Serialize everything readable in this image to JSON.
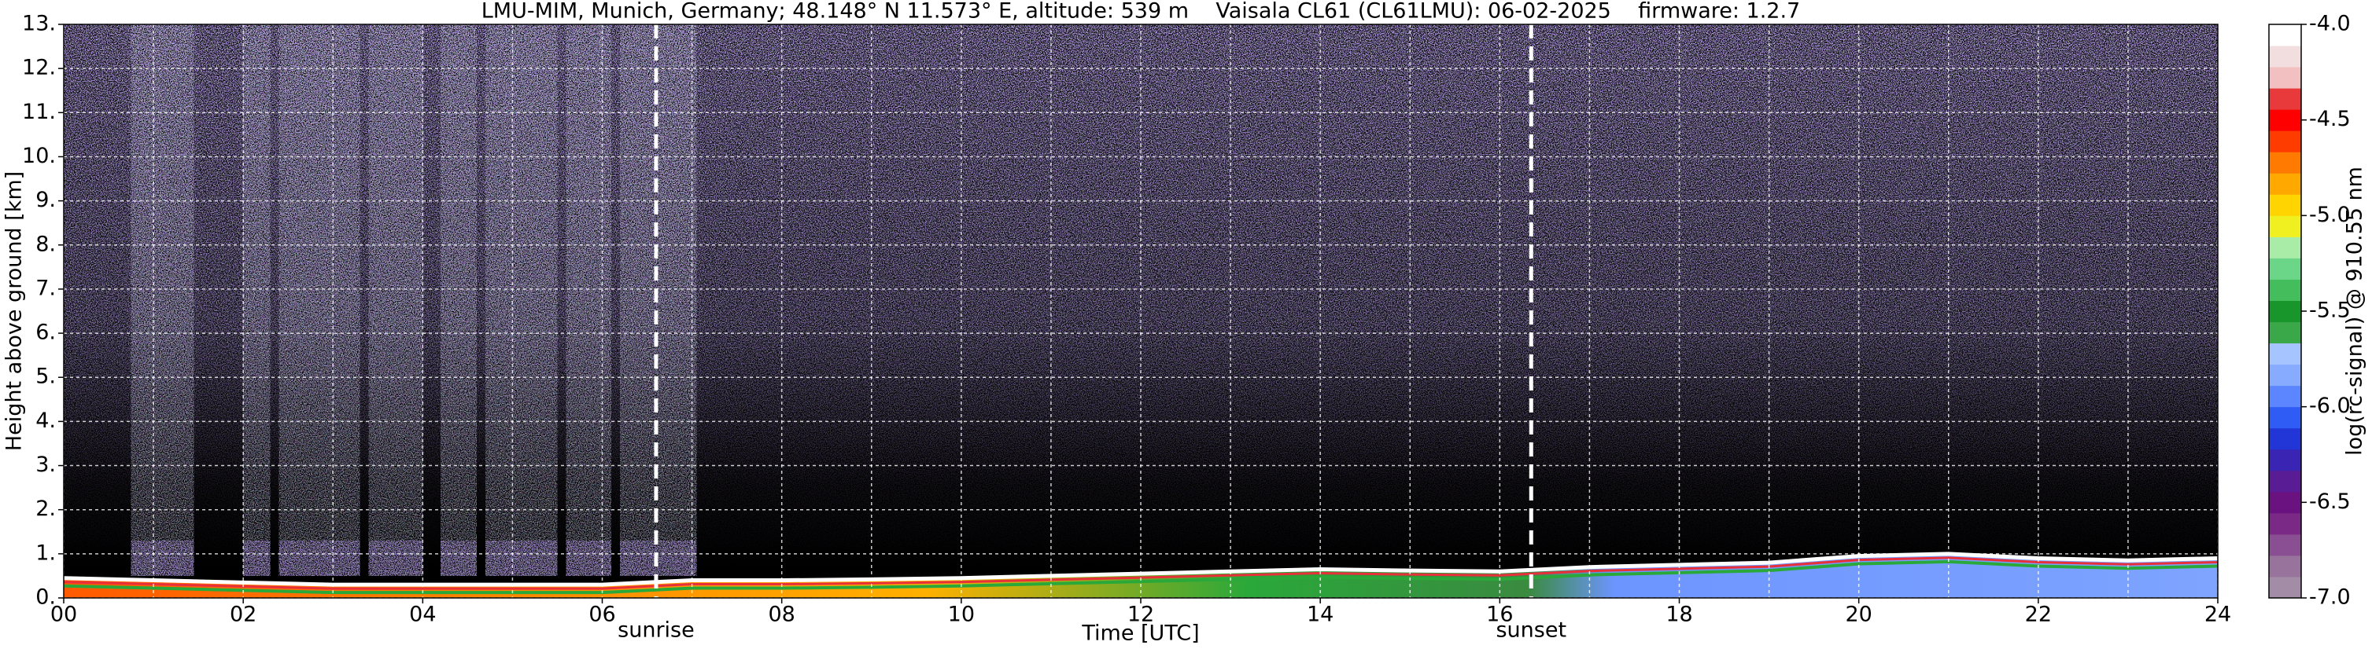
{
  "chart_data": {
    "type": "heatmap",
    "title": "LMU-MIM, Munich, Germany; 48.148° N 11.573° E, altitude: 539 m    Vaisala CL61 (CL61LMU): 06-02-2025    firmware: 1.2.7",
    "xlabel": "Time [UTC]",
    "ylabel": "Height above ground [km]",
    "xlim": [
      0,
      24
    ],
    "xticks": [
      {
        "value": 0,
        "label": "00"
      },
      {
        "value": 2,
        "label": "02"
      },
      {
        "value": 4,
        "label": "04"
      },
      {
        "value": 6,
        "label": "06"
      },
      {
        "value": 8,
        "label": "08"
      },
      {
        "value": 10,
        "label": "10"
      },
      {
        "value": 12,
        "label": "12"
      },
      {
        "value": 14,
        "label": "14"
      },
      {
        "value": 16,
        "label": "16"
      },
      {
        "value": 18,
        "label": "18"
      },
      {
        "value": 20,
        "label": "20"
      },
      {
        "value": 22,
        "label": "22"
      },
      {
        "value": 24,
        "label": "24"
      }
    ],
    "xminorticks": [
      1,
      3,
      5,
      7,
      9,
      11,
      13,
      15,
      17,
      19,
      21,
      23
    ],
    "ylim": [
      0,
      13
    ],
    "yticks": [
      {
        "value": 0,
        "label": "0."
      },
      {
        "value": 1,
        "label": "1."
      },
      {
        "value": 2,
        "label": "2."
      },
      {
        "value": 3,
        "label": "3."
      },
      {
        "value": 4,
        "label": "4."
      },
      {
        "value": 5,
        "label": "5."
      },
      {
        "value": 6,
        "label": "6."
      },
      {
        "value": 7,
        "label": "7."
      },
      {
        "value": 8,
        "label": "8."
      },
      {
        "value": 9,
        "label": "9."
      },
      {
        "value": 10,
        "label": "10."
      },
      {
        "value": 11,
        "label": "11."
      },
      {
        "value": 12,
        "label": "12."
      },
      {
        "value": 13,
        "label": "13."
      }
    ],
    "grid": true,
    "annotations": [
      {
        "text": "sunrise",
        "x": 6.6
      },
      {
        "text": "sunset",
        "x": 16.35
      }
    ],
    "layer_top": {
      "x": [
        0,
        1,
        2,
        3,
        4,
        5,
        6,
        7,
        8,
        9,
        10,
        11,
        12,
        13,
        14,
        15,
        16,
        17,
        18,
        19,
        20,
        21,
        22,
        23,
        24
      ],
      "values": [
        0.45,
        0.4,
        0.35,
        0.3,
        0.3,
        0.3,
        0.3,
        0.4,
        0.4,
        0.42,
        0.45,
        0.5,
        0.55,
        0.6,
        0.65,
        0.62,
        0.6,
        0.7,
        0.75,
        0.8,
        0.95,
        1.0,
        0.9,
        0.85,
        0.9
      ]
    },
    "colorbar": {
      "label": "log(rc-signal) @ 910.55 nm",
      "lim": [
        -7,
        -4
      ],
      "ticks": [
        {
          "value": -7,
          "label": "-7.0"
        },
        {
          "value": -6.5,
          "label": "-6.5"
        },
        {
          "value": -6,
          "label": "-6.0"
        },
        {
          "value": -5.5,
          "label": "-5.5"
        },
        {
          "value": -5,
          "label": "-5.0"
        },
        {
          "value": -4.5,
          "label": "-4.5"
        },
        {
          "value": -4,
          "label": "-4.0"
        }
      ],
      "colors": [
        "#a38ca6",
        "#98739c",
        "#8a4f92",
        "#7a2a86",
        "#6a1280",
        "#5a1c94",
        "#3a24b4",
        "#2236d8",
        "#2f5cf5",
        "#5b86ff",
        "#86abff",
        "#a6c4ff",
        "#3aa848",
        "#18962c",
        "#44be5c",
        "#6cd688",
        "#a8eca8",
        "#f0f020",
        "#ffd400",
        "#ffa800",
        "#ff7a00",
        "#ff3c00",
        "#ff0000",
        "#e83a3a",
        "#f2c0c0",
        "#f2dede",
        "#ffffff"
      ]
    }
  }
}
